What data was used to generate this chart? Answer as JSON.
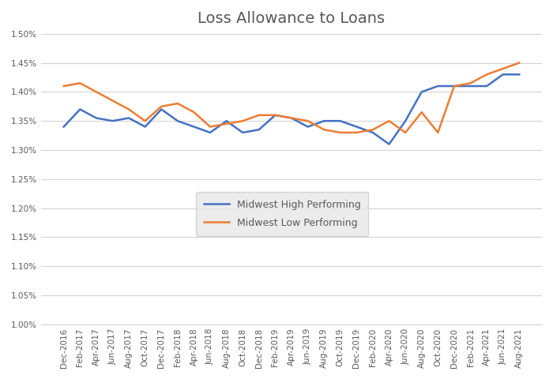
{
  "title": "Loss Allowance to Loans",
  "x_labels": [
    "Dec-2016",
    "Feb-2017",
    "Apr-2017",
    "Jun-2017",
    "Aug-2017",
    "Oct-2017",
    "Dec-2017",
    "Feb-2018",
    "Apr-2018",
    "Jun-2018",
    "Aug-2018",
    "Oct-2018",
    "Dec-2018",
    "Feb-2019",
    "Apr-2019",
    "Jun-2019",
    "Aug-2019",
    "Oct-2019",
    "Dec-2019",
    "Feb-2020",
    "Apr-2020",
    "Jun-2020",
    "Aug-2020",
    "Oct-2020",
    "Dec-2020",
    "Feb-2021",
    "Apr-2021",
    "Jun-2021",
    "Aug-2021"
  ],
  "high_performing": [
    0.0134,
    0.0137,
    0.01355,
    0.0135,
    0.01355,
    0.0134,
    0.0137,
    0.0135,
    0.0134,
    0.0133,
    0.0135,
    0.0133,
    0.01335,
    0.0136,
    0.01355,
    0.0134,
    0.0135,
    0.0135,
    0.0134,
    0.0133,
    0.0131,
    0.0135,
    0.014,
    0.0141,
    0.0141,
    0.0141,
    0.0141,
    0.0143,
    0.0143
  ],
  "low_performing": [
    0.0141,
    0.01415,
    0.014,
    0.01385,
    0.0137,
    0.0135,
    0.01375,
    0.0138,
    0.01365,
    0.0134,
    0.01345,
    0.0135,
    0.0136,
    0.0136,
    0.01355,
    0.0135,
    0.01335,
    0.0133,
    0.0133,
    0.01335,
    0.0135,
    0.0133,
    0.01365,
    0.0133,
    0.0141,
    0.01415,
    0.0143,
    0.0144,
    0.0145
  ],
  "high_color": "#4472C4",
  "low_color": "#ED7D31",
  "ylim_min": 0.01,
  "ylim_max": 0.015,
  "ytick_step": 0.0005,
  "background_color": "#FFFFFF",
  "grid_color": "#D3D3D3",
  "title_fontsize": 14,
  "title_color": "#595959",
  "legend_labels": [
    "Midwest High Performing",
    "Midwest Low Performing"
  ],
  "legend_facecolor": "#E8E8E8",
  "tick_label_color": "#595959",
  "tick_fontsize": 7.5
}
